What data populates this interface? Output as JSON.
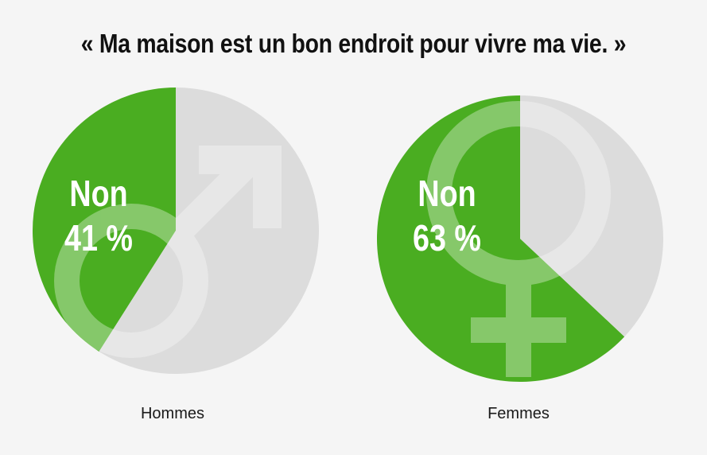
{
  "chart_data": {
    "type": "pie",
    "title": "« Ma maison est un bon endroit pour vivre ma vie. »",
    "charts": [
      {
        "group_label": "Hommes",
        "slice_label": "Non",
        "value_text": "41 %",
        "values": [
          41,
          59
        ],
        "slices": [
          "Non",
          ""
        ],
        "symbol": "male-symbol"
      },
      {
        "group_label": "Femmes",
        "slice_label": "Non",
        "value_text": "63 %",
        "values": [
          63,
          37
        ],
        "slices": [
          "Non",
          ""
        ],
        "symbol": "female-symbol"
      }
    ]
  },
  "colors": {
    "highlight": "#4aad21",
    "rest": "#dcdcdc",
    "symbol": "#ffffff",
    "background": "#f5f5f5"
  }
}
